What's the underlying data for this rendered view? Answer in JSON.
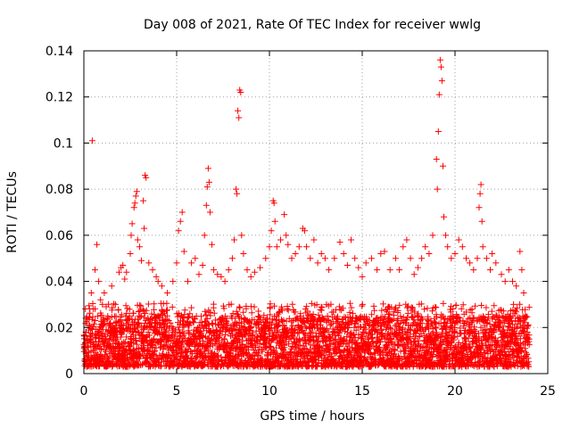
{
  "chart_data": {
    "type": "scatter",
    "title": "Day 008 of 2021, Rate Of TEC Index for receiver wwlg",
    "xlabel": "GPS time / hours",
    "ylabel": "ROTI / TECUs",
    "xlim": [
      0,
      25
    ],
    "ylim": [
      0,
      0.14
    ],
    "xticks": [
      0,
      5,
      10,
      15,
      20,
      25
    ],
    "xtick_labels": [
      "0",
      "5",
      "10",
      "15",
      "20",
      "25"
    ],
    "yticks": [
      0,
      0.02,
      0.04,
      0.06,
      0.08,
      0.1,
      0.12,
      0.14
    ],
    "ytick_labels": [
      "0",
      "0.02",
      "0.04",
      "0.06",
      "0.08",
      "0.1",
      "0.12",
      "0.14"
    ],
    "grid": true,
    "marker": "+",
    "color": "#ff0000",
    "data_range_x": [
      0,
      24
    ],
    "series": [
      {
        "name": "ROTI",
        "bulk_band": {
          "min": 0.003,
          "max": 0.025,
          "sample_interval_h": 0.008
        },
        "points": [
          [
            0.1,
            0.018
          ],
          [
            0.2,
            0.012
          ],
          [
            0.3,
            0.021
          ],
          [
            0.4,
            0.035
          ],
          [
            0.45,
            0.101
          ],
          [
            0.5,
            0.028
          ],
          [
            0.6,
            0.045
          ],
          [
            0.7,
            0.056
          ],
          [
            0.8,
            0.04
          ],
          [
            0.9,
            0.032
          ],
          [
            1.0,
            0.03
          ],
          [
            1.1,
            0.035
          ],
          [
            1.2,
            0.029
          ],
          [
            1.3,
            0.024
          ],
          [
            1.5,
            0.038
          ],
          [
            1.7,
            0.03
          ],
          [
            1.9,
            0.044
          ],
          [
            2.0,
            0.046
          ],
          [
            2.1,
            0.047
          ],
          [
            2.2,
            0.041
          ],
          [
            2.3,
            0.044
          ],
          [
            2.5,
            0.052
          ],
          [
            2.55,
            0.06
          ],
          [
            2.6,
            0.065
          ],
          [
            2.7,
            0.072
          ],
          [
            2.75,
            0.074
          ],
          [
            2.8,
            0.077
          ],
          [
            2.85,
            0.079
          ],
          [
            2.9,
            0.058
          ],
          [
            3.0,
            0.055
          ],
          [
            3.1,
            0.049
          ],
          [
            3.2,
            0.075
          ],
          [
            3.25,
            0.063
          ],
          [
            3.3,
            0.086
          ],
          [
            3.35,
            0.085
          ],
          [
            3.5,
            0.048
          ],
          [
            3.7,
            0.045
          ],
          [
            3.9,
            0.042
          ],
          [
            4.0,
            0.04
          ],
          [
            4.2,
            0.038
          ],
          [
            4.5,
            0.035
          ],
          [
            4.8,
            0.04
          ],
          [
            5.0,
            0.048
          ],
          [
            5.1,
            0.062
          ],
          [
            5.2,
            0.066
          ],
          [
            5.3,
            0.07
          ],
          [
            5.4,
            0.053
          ],
          [
            5.6,
            0.04
          ],
          [
            5.8,
            0.048
          ],
          [
            6.0,
            0.05
          ],
          [
            6.2,
            0.043
          ],
          [
            6.4,
            0.047
          ],
          [
            6.5,
            0.06
          ],
          [
            6.6,
            0.073
          ],
          [
            6.65,
            0.081
          ],
          [
            6.7,
            0.089
          ],
          [
            6.75,
            0.083
          ],
          [
            6.8,
            0.07
          ],
          [
            6.9,
            0.056
          ],
          [
            7.0,
            0.045
          ],
          [
            7.2,
            0.043
          ],
          [
            7.4,
            0.042
          ],
          [
            7.6,
            0.04
          ],
          [
            7.8,
            0.045
          ],
          [
            8.0,
            0.05
          ],
          [
            8.1,
            0.058
          ],
          [
            8.2,
            0.08
          ],
          [
            8.25,
            0.078
          ],
          [
            8.3,
            0.114
          ],
          [
            8.35,
            0.111
          ],
          [
            8.4,
            0.123
          ],
          [
            8.45,
            0.122
          ],
          [
            8.5,
            0.06
          ],
          [
            8.6,
            0.052
          ],
          [
            8.8,
            0.045
          ],
          [
            9.0,
            0.042
          ],
          [
            9.2,
            0.044
          ],
          [
            9.5,
            0.046
          ],
          [
            9.8,
            0.05
          ],
          [
            10.0,
            0.055
          ],
          [
            10.1,
            0.062
          ],
          [
            10.2,
            0.075
          ],
          [
            10.25,
            0.074
          ],
          [
            10.3,
            0.066
          ],
          [
            10.4,
            0.055
          ],
          [
            10.6,
            0.058
          ],
          [
            10.8,
            0.069
          ],
          [
            10.9,
            0.06
          ],
          [
            11.0,
            0.056
          ],
          [
            11.2,
            0.05
          ],
          [
            11.4,
            0.052
          ],
          [
            11.6,
            0.055
          ],
          [
            11.8,
            0.063
          ],
          [
            11.9,
            0.062
          ],
          [
            12.0,
            0.055
          ],
          [
            12.2,
            0.05
          ],
          [
            12.4,
            0.058
          ],
          [
            12.6,
            0.048
          ],
          [
            12.8,
            0.052
          ],
          [
            13.0,
            0.05
          ],
          [
            13.2,
            0.045
          ],
          [
            13.5,
            0.05
          ],
          [
            13.8,
            0.057
          ],
          [
            14.0,
            0.052
          ],
          [
            14.2,
            0.047
          ],
          [
            14.4,
            0.058
          ],
          [
            14.6,
            0.05
          ],
          [
            14.8,
            0.046
          ],
          [
            15.0,
            0.042
          ],
          [
            15.2,
            0.048
          ],
          [
            15.5,
            0.05
          ],
          [
            15.8,
            0.045
          ],
          [
            16.0,
            0.052
          ],
          [
            16.2,
            0.053
          ],
          [
            16.5,
            0.045
          ],
          [
            16.8,
            0.05
          ],
          [
            17.0,
            0.045
          ],
          [
            17.2,
            0.055
          ],
          [
            17.4,
            0.058
          ],
          [
            17.6,
            0.05
          ],
          [
            17.8,
            0.043
          ],
          [
            18.0,
            0.046
          ],
          [
            18.2,
            0.05
          ],
          [
            18.4,
            0.055
          ],
          [
            18.6,
            0.052
          ],
          [
            18.8,
            0.06
          ],
          [
            19.0,
            0.093
          ],
          [
            19.05,
            0.08
          ],
          [
            19.1,
            0.105
          ],
          [
            19.15,
            0.121
          ],
          [
            19.2,
            0.136
          ],
          [
            19.25,
            0.133
          ],
          [
            19.3,
            0.127
          ],
          [
            19.35,
            0.09
          ],
          [
            19.4,
            0.068
          ],
          [
            19.5,
            0.06
          ],
          [
            19.6,
            0.055
          ],
          [
            19.8,
            0.05
          ],
          [
            20.0,
            0.052
          ],
          [
            20.2,
            0.058
          ],
          [
            20.4,
            0.055
          ],
          [
            20.6,
            0.05
          ],
          [
            20.8,
            0.048
          ],
          [
            21.0,
            0.045
          ],
          [
            21.2,
            0.05
          ],
          [
            21.3,
            0.072
          ],
          [
            21.35,
            0.078
          ],
          [
            21.4,
            0.082
          ],
          [
            21.45,
            0.066
          ],
          [
            21.5,
            0.055
          ],
          [
            21.7,
            0.05
          ],
          [
            21.9,
            0.045
          ],
          [
            22.0,
            0.052
          ],
          [
            22.2,
            0.048
          ],
          [
            22.5,
            0.043
          ],
          [
            22.7,
            0.04
          ],
          [
            22.9,
            0.045
          ],
          [
            23.1,
            0.04
          ],
          [
            23.3,
            0.038
          ],
          [
            23.5,
            0.053
          ],
          [
            23.6,
            0.045
          ],
          [
            23.7,
            0.035
          ],
          [
            23.8,
            0.025
          ],
          [
            23.9,
            0.018
          ],
          [
            24.0,
            0.015
          ]
        ]
      }
    ]
  }
}
